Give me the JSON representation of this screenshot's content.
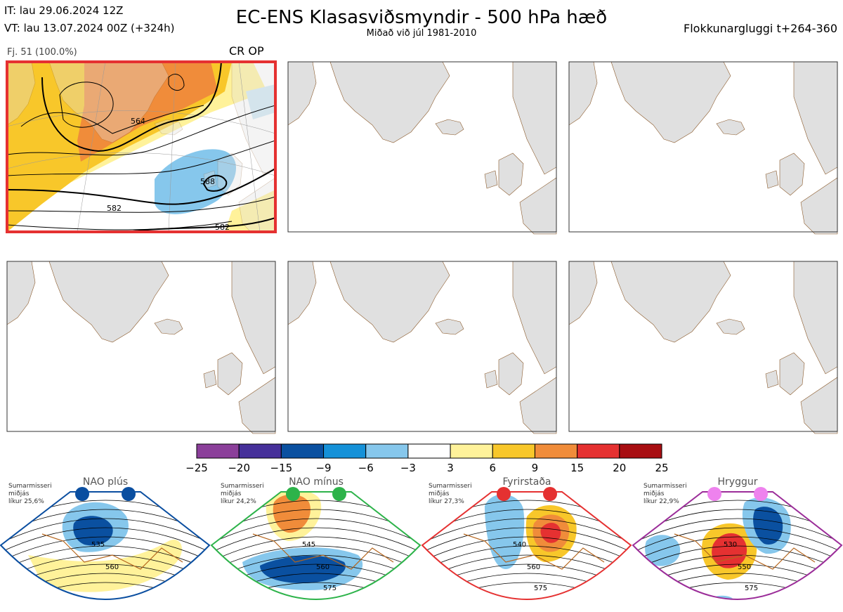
{
  "header": {
    "it": "IT: lau 29.06.2024 12Z",
    "vt": "VT: lau 13.07.2024 00Z  (+324h)",
    "title": "EC-ENS Klasasviðsmyndir - 500 hPa hæð",
    "subtitle": "Miðað við júl 1981-2010",
    "window": "Flokkunargluggi t+264-360"
  },
  "cluster": {
    "member_count_label": "Fj. 51 (100.0%)",
    "tag": "CR OP",
    "contour_labels": [
      "564",
      "582",
      "582",
      "588"
    ]
  },
  "colorbar": {
    "ticks": [
      "−25",
      "−20",
      "−15",
      "−9",
      "−6",
      "−3",
      "3",
      "6",
      "9",
      "15",
      "20",
      "25"
    ],
    "colors": [
      "#8b3f9a",
      "#46309a",
      "#0a50a0",
      "#1591d8",
      "#86c7ec",
      "#ffffff",
      "#fff29a",
      "#f8c72a",
      "#f08c3a",
      "#e53131",
      "#a80e12"
    ]
  },
  "regimes": [
    {
      "title": "NAO plús",
      "season": "Sumarmisseri",
      "kind": "miðjás",
      "prob": "líkur 25,6%",
      "color": "#0a4ea0",
      "dot_color": "#0a4ea0",
      "contours": [
        "535",
        "560"
      ]
    },
    {
      "title": "NAO mínus",
      "season": "Sumarmisseri",
      "kind": "miðjás",
      "prob": "líkur 24,2%",
      "color": "#2db34a",
      "dot_color": "#2db34a",
      "contours": [
        "545",
        "560",
        "575"
      ]
    },
    {
      "title": "Fyrirstaða",
      "season": "Sumarmisseri",
      "kind": "miðjás",
      "prob": "líkur 27,3%",
      "color": "#e53131",
      "dot_color": "#e53131",
      "contours": [
        "540",
        "560",
        "575"
      ]
    },
    {
      "title": "Hryggur",
      "season": "Sumarmisseri",
      "kind": "miðjás",
      "prob": "líkur 22,9%",
      "color": "#9b2d99",
      "dot_color": "#ee82ee",
      "contours": [
        "530",
        "550",
        "575"
      ]
    }
  ]
}
